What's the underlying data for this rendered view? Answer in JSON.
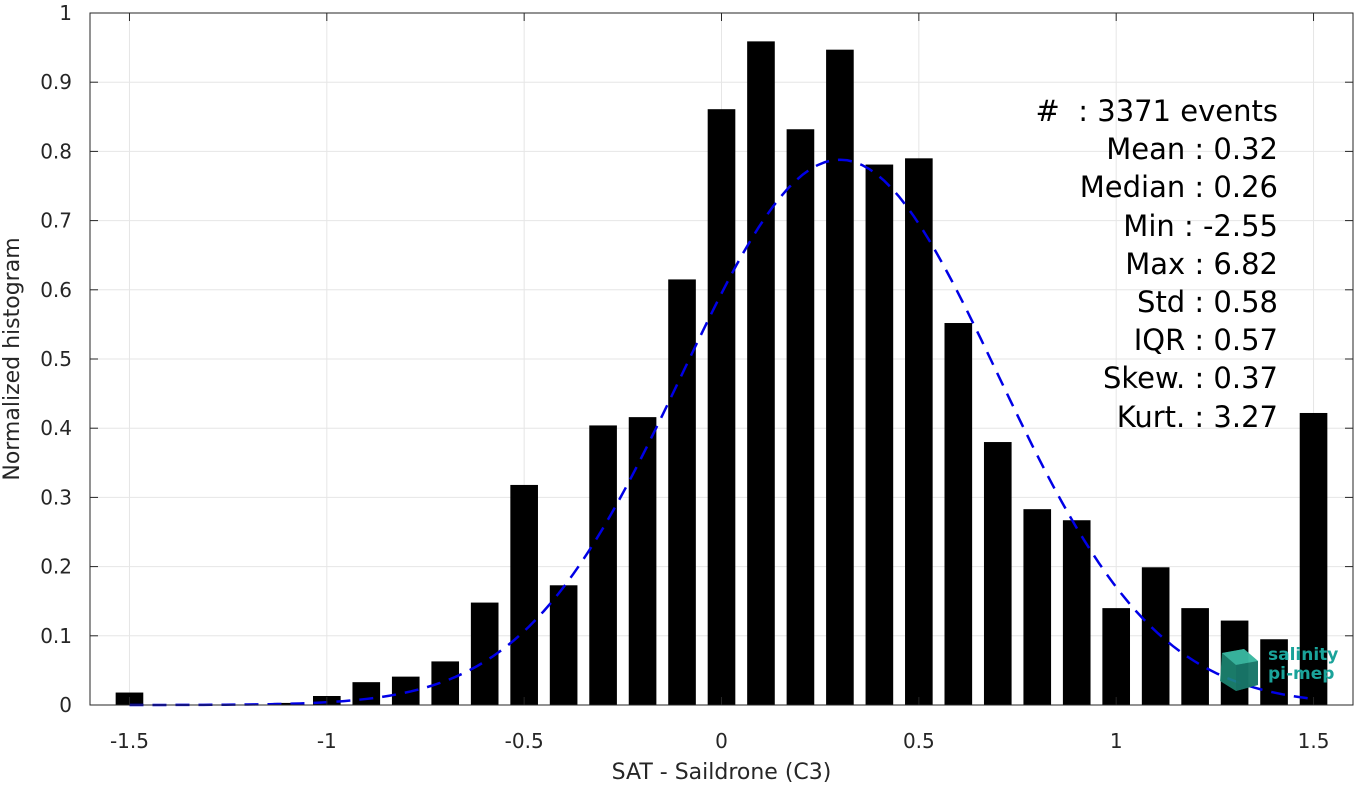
{
  "chart_data": {
    "type": "bar",
    "xlabel": "SAT - Saildrone (C3)",
    "ylabel": "Normalized histogram",
    "xlim": [
      -1.6,
      1.6
    ],
    "ylim": [
      0,
      1
    ],
    "xticks": [
      -1.5,
      -1,
      -0.5,
      0,
      0.5,
      1,
      1.5
    ],
    "xtick_labels": [
      "-1.5",
      "-1",
      "-0.5",
      "0",
      "0.5",
      "1",
      "1.5"
    ],
    "yticks": [
      0,
      0.1,
      0.2,
      0.3,
      0.4,
      0.5,
      0.6,
      0.7,
      0.8,
      0.9,
      1
    ],
    "ytick_labels": [
      "0",
      "0.1",
      "0.2",
      "0.3",
      "0.4",
      "0.5",
      "0.6",
      "0.7",
      "0.8",
      "0.9",
      "1"
    ],
    "grid": true,
    "bar_width": 0.07,
    "bar_color": "#000000",
    "bars": {
      "x": [
        -1.5,
        -1.1,
        -1.0,
        -0.9,
        -0.8,
        -0.7,
        -0.6,
        -0.5,
        -0.4,
        -0.3,
        -0.2,
        -0.1,
        0.0,
        0.1,
        0.2,
        0.3,
        0.4,
        0.5,
        0.6,
        0.7,
        0.8,
        0.9,
        1.0,
        1.1,
        1.2,
        1.3,
        1.4,
        1.5
      ],
      "values": [
        0.018,
        0.003,
        0.013,
        0.033,
        0.041,
        0.063,
        0.148,
        0.318,
        0.173,
        0.404,
        0.416,
        0.615,
        0.861,
        0.959,
        0.832,
        0.947,
        0.781,
        0.79,
        0.552,
        0.38,
        0.283,
        0.267,
        0.14,
        0.199,
        0.14,
        0.122,
        0.095,
        0.422
      ]
    },
    "fit_curve": {
      "type": "gaussian",
      "style": "dashed",
      "color": "#0000e6",
      "mean": 0.3,
      "std": 0.4,
      "peak": 0.788,
      "x_range": [
        -1.5,
        1.5
      ]
    },
    "annotation": {
      "lines": [
        "#  : 3371 events",
        "Mean : 0.32",
        "Median : 0.26",
        "Min : -2.55",
        "Max : 6.82",
        "Std : 0.58",
        "IQR : 0.57",
        "Skew. : 0.37",
        "Kurt. : 3.27"
      ]
    }
  },
  "logo": {
    "line1": "salinity",
    "line2": "pi-mep",
    "color": "#1aa39a",
    "icon": "cube-logo-icon"
  }
}
